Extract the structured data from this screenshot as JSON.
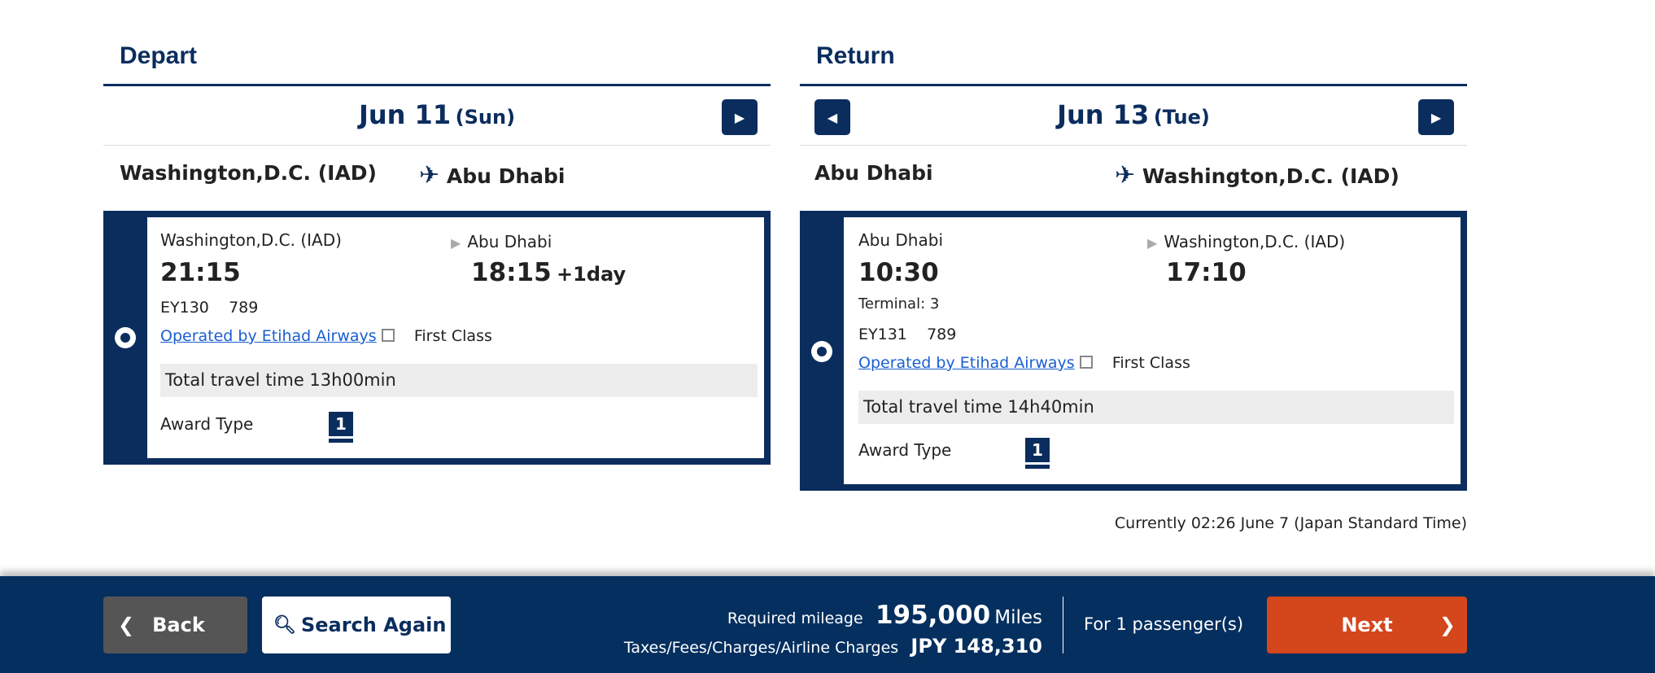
{
  "depart": {
    "heading": "Depart",
    "date": "Jun 11",
    "weekday": "(Sun)",
    "next_icon": "chevron-right-icon",
    "route_from": "Washington,D.C. (IAD)",
    "route_to": "Abu Dhabi",
    "flight": {
      "from": "Washington,D.C. (IAD)",
      "to": "Abu Dhabi",
      "dep_time": "21:15",
      "arr_time": "18:15",
      "arr_offset": "+1day",
      "flight_no": "EY130",
      "aircraft": "789",
      "operated_by": "Operated by Etihad Airways",
      "class": "First Class",
      "total_time": "Total travel time 13h00min",
      "award_label": "Award Type",
      "award_value": "1"
    }
  },
  "return": {
    "heading": "Return",
    "date": "Jun 13",
    "weekday": "(Tue)",
    "route_from": "Abu Dhabi",
    "route_to": "Washington,D.C. (IAD)",
    "flight": {
      "from": "Abu Dhabi",
      "to": "Washington,D.C. (IAD)",
      "dep_time": "10:30",
      "arr_time": "17:10",
      "terminal": "Terminal: 3",
      "flight_no": "EY131",
      "aircraft": "789",
      "operated_by": "Operated by Etihad Airways",
      "class": "First Class",
      "total_time": "Total travel time 14h40min",
      "award_label": "Award Type",
      "award_value": "1"
    }
  },
  "current_time": "Currently 02:26 June 7 (Japan Standard Time)",
  "footer": {
    "back": "Back",
    "search_again": "Search Again",
    "mileage_label": "Required mileage",
    "mileage_value": "195,000",
    "mileage_unit": "Miles",
    "taxes_label": "Taxes/Fees/Charges/Airline Charges",
    "taxes_value": "JPY 148,310",
    "passengers": "For 1 passenger(s)",
    "next": "Next"
  },
  "colors": {
    "navy": "#0b2d5e",
    "footer": "#042f5f",
    "next": "#d4461b",
    "back": "#555555",
    "link": "#1a5fd0"
  }
}
